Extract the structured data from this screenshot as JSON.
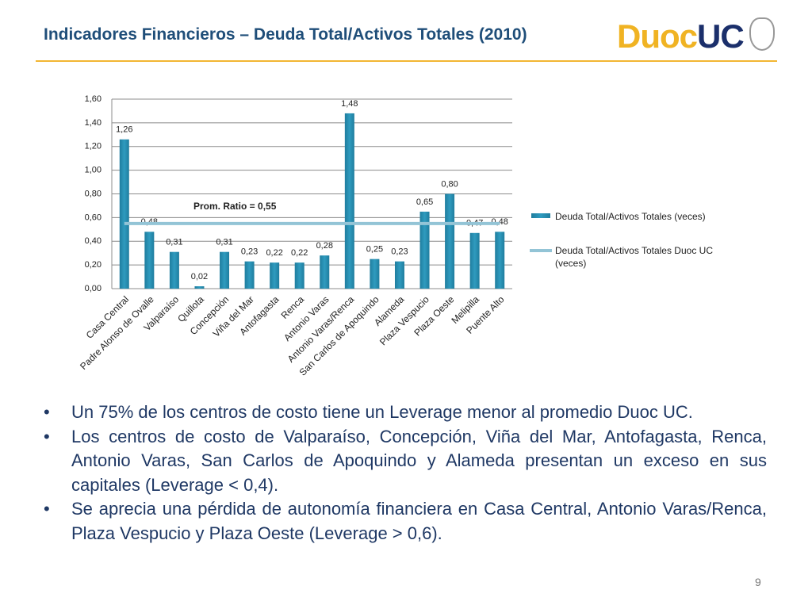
{
  "slide_title": "Indicadores Financieros – Deuda Total/Activos Totales (2010)",
  "logo": {
    "left": "Duoc",
    "right": "UC"
  },
  "chart_data": {
    "type": "bar",
    "categories": [
      "Casa Central",
      "Padre Alonso de Ovalle",
      "Valparaíso",
      "Quillota",
      "Concepción",
      "Viña del Mar",
      "Antofagasta",
      "Renca",
      "Antonio Varas",
      "Antonio Varas/Renca",
      "San Carlos de Apoquindo",
      "Alameda",
      "Plaza Vespucio",
      "Plaza Oeste",
      "Melipilla",
      "Puente Alto"
    ],
    "series": [
      {
        "name": "Deuda Total/Activos Totales (veces)",
        "color": "#2f9bbf",
        "values": [
          1.26,
          0.48,
          0.31,
          0.02,
          0.31,
          0.23,
          0.22,
          0.22,
          0.28,
          1.48,
          0.25,
          0.23,
          0.65,
          0.8,
          0.47,
          0.48
        ],
        "value_labels": [
          "1,26",
          "0,48",
          "0,31",
          "0,02",
          "0,31",
          "0,23",
          "0,22",
          "0,22",
          "0,28",
          "1,48",
          "0,25",
          "0,23",
          "0,65",
          "0,80",
          "0,47",
          "0,48"
        ]
      },
      {
        "name": "Deuda Total/Activos Totales  Duoc UC (veces)",
        "color": "#93c4d6",
        "type": "line",
        "values": [
          0.55,
          0.55,
          0.55,
          0.55,
          0.55,
          0.55,
          0.55,
          0.55,
          0.55,
          0.55,
          0.55,
          0.55,
          0.55,
          0.55,
          0.55,
          0.55
        ]
      }
    ],
    "annotation": "Prom. Ratio = 0,55",
    "ylim": [
      0,
      1.6
    ],
    "yticks": [
      {
        "value": 0,
        "label": "0,00"
      },
      {
        "value": 0.2,
        "label": "0,20"
      },
      {
        "value": 0.4,
        "label": "0,40"
      },
      {
        "value": 0.6,
        "label": "0,60"
      },
      {
        "value": 0.8,
        "label": "0,80"
      },
      {
        "value": 1.0,
        "label": "1,00"
      },
      {
        "value": 1.2,
        "label": "1,20"
      },
      {
        "value": 1.4,
        "label": "1,40"
      },
      {
        "value": 1.6,
        "label": "1,60"
      }
    ],
    "grid": true,
    "legend": "right"
  },
  "bullets": [
    "Un 75% de los centros de costo tiene un Leverage menor al promedio Duoc UC.",
    "Los centros de costo de Valparaíso, Concepción, Viña del Mar, Antofagasta, Renca, Antonio Varas, San Carlos de Apoquindo y Alameda presentan un exceso en sus capitales (Leverage < 0,4).",
    "Se aprecia una pérdida de autonomía financiera en Casa Central, Antonio Varas/Renca,  Plaza Vespucio y Plaza Oeste (Leverage > 0,6)."
  ],
  "page_number": "9"
}
